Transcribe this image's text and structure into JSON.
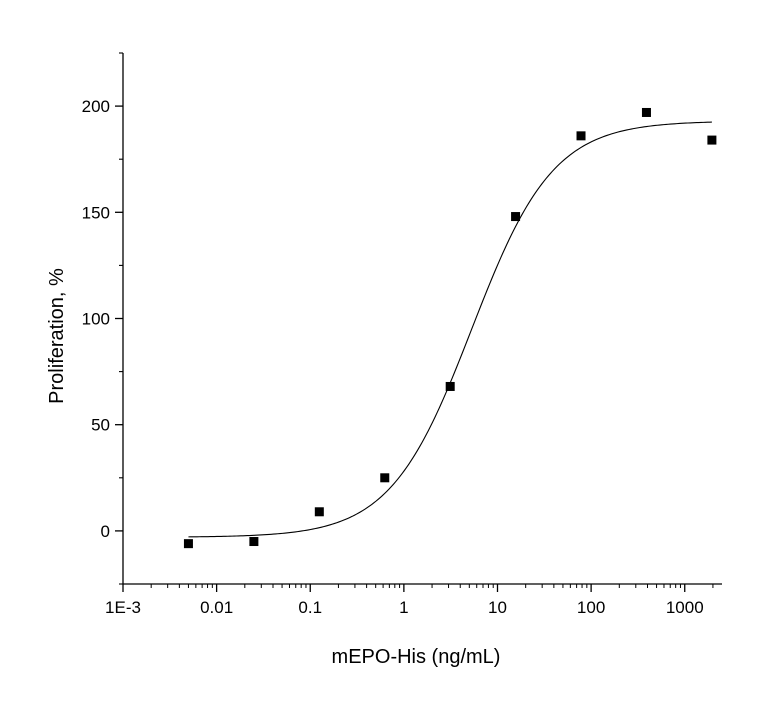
{
  "chart_data": {
    "type": "scatter",
    "title": "",
    "xlabel": "mEPO-His (ng/mL)",
    "ylabel": "Proliferation, %",
    "x_scale": "log",
    "xlim": [
      0.001,
      2500
    ],
    "ylim": [
      -25,
      225
    ],
    "x_ticks": [
      {
        "value": 0.001,
        "label": "1E-3"
      },
      {
        "value": 0.01,
        "label": "0.01"
      },
      {
        "value": 0.1,
        "label": "0.1"
      },
      {
        "value": 1,
        "label": "1"
      },
      {
        "value": 10,
        "label": "10"
      },
      {
        "value": 100,
        "label": "100"
      },
      {
        "value": 1000,
        "label": "1000"
      }
    ],
    "y_ticks": [
      {
        "value": 0,
        "label": "0"
      },
      {
        "value": 50,
        "label": "50"
      },
      {
        "value": 100,
        "label": "100"
      },
      {
        "value": 150,
        "label": "150"
      },
      {
        "value": 200,
        "label": "200"
      }
    ],
    "y_minor_ticks": [
      -25,
      25,
      75,
      125,
      175,
      225
    ],
    "points": [
      {
        "x": 0.005,
        "y": -6
      },
      {
        "x": 0.025,
        "y": -5
      },
      {
        "x": 0.125,
        "y": 9
      },
      {
        "x": 0.625,
        "y": 25
      },
      {
        "x": 3.125,
        "y": 68
      },
      {
        "x": 15.6,
        "y": 148
      },
      {
        "x": 78,
        "y": 186
      },
      {
        "x": 390,
        "y": 197
      },
      {
        "x": 1950,
        "y": 184
      }
    ],
    "fit": {
      "model": "4PL",
      "bottom": -3,
      "top": 193,
      "ec50": 5.3,
      "hill": 1.0,
      "x_range": [
        0.005,
        1950
      ]
    },
    "grid": false,
    "legend": "none",
    "colors": {
      "marker": "#000000",
      "line": "#000000",
      "axis": "#000000"
    }
  }
}
